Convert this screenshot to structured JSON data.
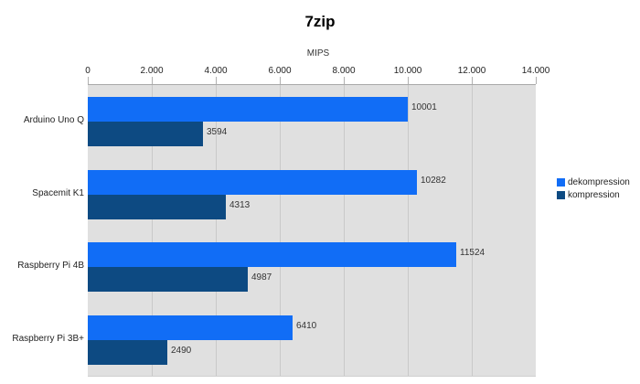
{
  "title": "7zip",
  "axis_label": "MIPS",
  "colors": {
    "dekompression": "#116df6",
    "kompression": "#0d4a82",
    "plot_bg": "#e0e0e0",
    "gridline": "#c9c9c9",
    "value_text": "#333333"
  },
  "legend": {
    "items": [
      {
        "label": "dekompression",
        "color": "#116df6"
      },
      {
        "label": "kompression",
        "color": "#0d4a82"
      }
    ]
  },
  "chart_data": {
    "type": "bar",
    "orientation": "horizontal",
    "title": "7zip",
    "xlabel": "MIPS",
    "categories": [
      "Arduino Uno Q",
      "Spacemit K1",
      "Raspberry Pi 4B",
      "Raspberry Pi 3B+"
    ],
    "series": [
      {
        "name": "dekompression",
        "color": "#116df6",
        "values": [
          10001,
          10282,
          11524,
          6410
        ]
      },
      {
        "name": "kompression",
        "color": "#0d4a82",
        "values": [
          3594,
          4313,
          4987,
          2490
        ]
      }
    ],
    "xlim": [
      0,
      14000
    ],
    "tick_step": 2000,
    "tick_labels": [
      "0",
      "2.000",
      "4.000",
      "6.000",
      "8.000",
      "10.000",
      "12.000",
      "14.000"
    ],
    "grid": true,
    "legend_position": "right",
    "value_labels": true
  }
}
